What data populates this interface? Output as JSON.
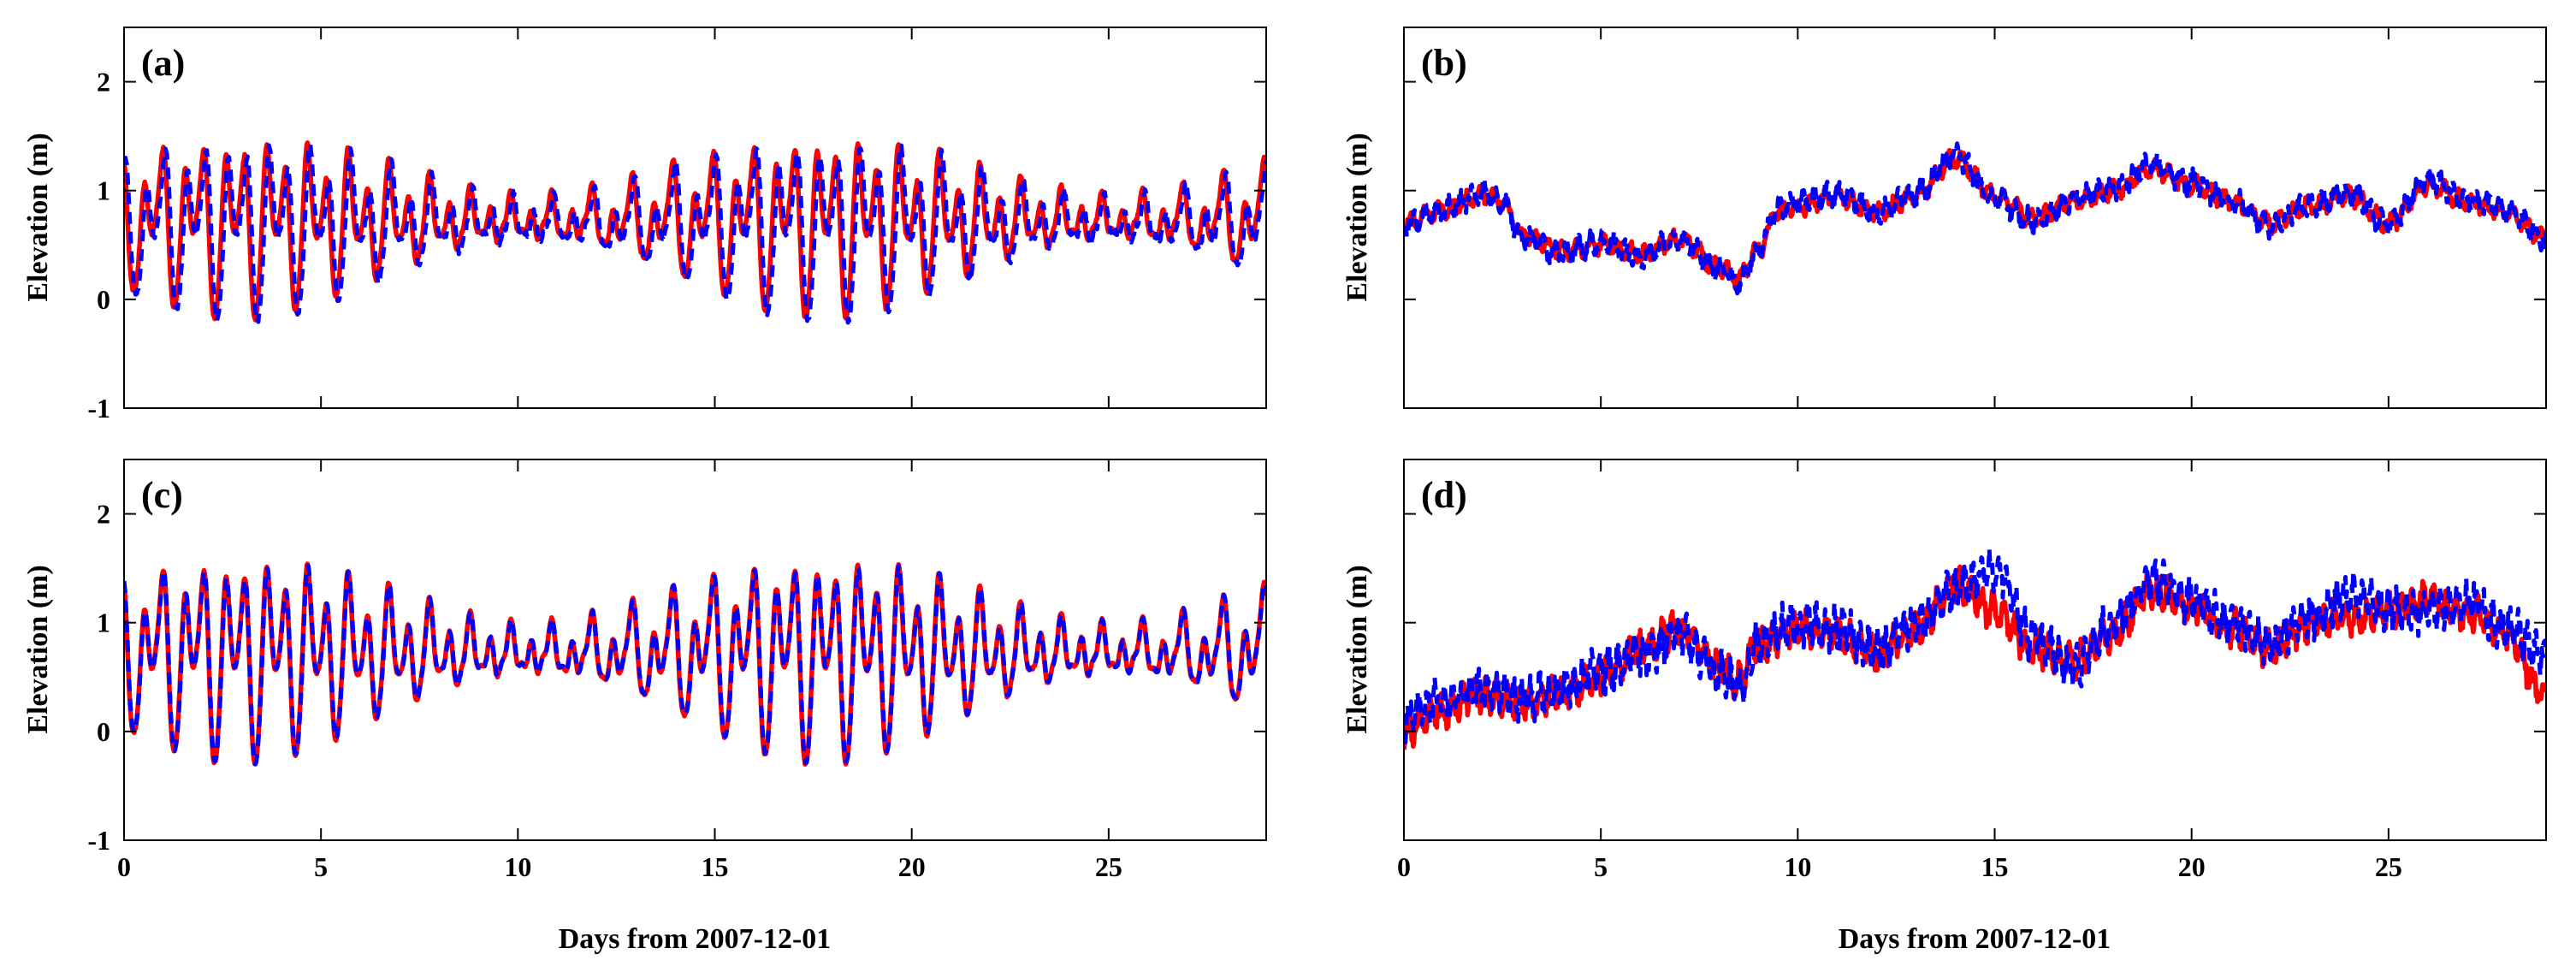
{
  "figure": {
    "description_note": "Four-panel time series of water elevation; red solid and blue dashed series in each panel",
    "colors": {
      "series_red": "#ff0000",
      "series_blue": "#0000ff",
      "axis": "#000000"
    }
  },
  "chart_data": [
    {
      "type": "line",
      "panel": "(a)",
      "xlabel": "",
      "ylabel": "Elevation (m)",
      "xlim": [
        0,
        29
      ],
      "ylim": [
        -1,
        2.5
      ],
      "xticks": [
        0,
        5,
        10,
        15,
        20,
        25
      ],
      "xtick_labels": [
        "",
        "",
        "",
        "",
        "",
        ""
      ],
      "yticks": [
        -1,
        0,
        1,
        2
      ],
      "ytick_labels": [
        "-1",
        "0",
        "1",
        "2"
      ],
      "series": [
        {
          "name": "red solid",
          "color": "#ff0000",
          "style": "solid",
          "model": "tide",
          "mean": 0.72,
          "amp": [
            1.0,
            0.2,
            0.45,
            0.35
          ],
          "phase_shift": 0.0,
          "trend": 0.0,
          "noise": 0.03
        },
        {
          "name": "blue dashed",
          "color": "#0000ff",
          "style": "dashed",
          "model": "tide",
          "mean": 0.7,
          "amp": [
            1.0,
            0.2,
            0.45,
            0.35
          ],
          "phase_shift": 0.06,
          "trend": 0.0,
          "noise": 0.05
        }
      ]
    },
    {
      "type": "line",
      "panel": "(b)",
      "xlabel": "",
      "ylabel": "Elevation (m)",
      "xlim": [
        0,
        29
      ],
      "ylim": [
        -1,
        2.5
      ],
      "xticks": [
        0,
        5,
        10,
        15,
        20,
        25
      ],
      "xtick_labels": [
        "",
        "",
        "",
        "",
        "",
        ""
      ],
      "yticks": [],
      "ytick_labels": [],
      "series": [
        {
          "name": "red solid",
          "color": "#ff0000",
          "style": "solid",
          "model": "anchors",
          "anchors": [
            [
              0,
              0.7
            ],
            [
              1,
              0.82
            ],
            [
              2,
              0.95
            ],
            [
              2.5,
              0.9
            ],
            [
              3,
              0.6
            ],
            [
              4,
              0.45
            ],
            [
              5,
              0.5
            ],
            [
              6,
              0.42
            ],
            [
              7,
              0.55
            ],
            [
              8,
              0.3
            ],
            [
              8.5,
              0.2
            ],
            [
              9,
              0.45
            ],
            [
              9.5,
              0.8
            ],
            [
              10,
              0.85
            ],
            [
              11,
              0.95
            ],
            [
              12,
              0.8
            ],
            [
              13,
              0.95
            ],
            [
              14,
              1.3
            ],
            [
              15,
              0.95
            ],
            [
              16,
              0.75
            ],
            [
              17,
              0.9
            ],
            [
              18,
              1.0
            ],
            [
              19,
              1.2
            ],
            [
              20,
              1.05
            ],
            [
              21,
              0.9
            ],
            [
              22,
              0.7
            ],
            [
              23,
              0.85
            ],
            [
              24,
              0.95
            ],
            [
              25,
              0.7
            ],
            [
              26,
              1.05
            ],
            [
              27,
              0.9
            ],
            [
              28,
              0.8
            ],
            [
              29,
              0.55
            ]
          ],
          "noise": 0.07,
          "jitter_period": 0.35
        },
        {
          "name": "blue dashed",
          "color": "#0000ff",
          "style": "dashed",
          "model": "anchors",
          "anchors": [
            [
              0,
              0.7
            ],
            [
              1,
              0.82
            ],
            [
              2,
              0.98
            ],
            [
              2.5,
              0.88
            ],
            [
              3,
              0.58
            ],
            [
              4,
              0.43
            ],
            [
              5,
              0.52
            ],
            [
              6,
              0.4
            ],
            [
              7,
              0.56
            ],
            [
              8,
              0.28
            ],
            [
              8.5,
              0.15
            ],
            [
              9,
              0.45
            ],
            [
              9.5,
              0.82
            ],
            [
              10,
              0.88
            ],
            [
              11,
              0.97
            ],
            [
              12,
              0.8
            ],
            [
              13,
              0.98
            ],
            [
              14,
              1.33
            ],
            [
              15,
              0.93
            ],
            [
              16,
              0.72
            ],
            [
              17,
              0.92
            ],
            [
              18,
              1.02
            ],
            [
              19,
              1.24
            ],
            [
              20,
              1.07
            ],
            [
              21,
              0.9
            ],
            [
              22,
              0.68
            ],
            [
              23,
              0.87
            ],
            [
              24,
              0.98
            ],
            [
              25,
              0.68
            ],
            [
              26,
              1.1
            ],
            [
              27,
              0.92
            ],
            [
              28,
              0.82
            ],
            [
              29,
              0.55
            ]
          ],
          "noise": 0.09,
          "jitter_period": 0.3
        }
      ]
    },
    {
      "type": "line",
      "panel": "(c)",
      "xlabel": "Days from 2007-12-01",
      "ylabel": "Elevation (m)",
      "xlim": [
        0,
        29
      ],
      "ylim": [
        -1,
        2.5
      ],
      "xticks": [
        0,
        5,
        10,
        15,
        20,
        25
      ],
      "xtick_labels": [
        "0",
        "5",
        "10",
        "15",
        "20",
        "25"
      ],
      "yticks": [
        -1,
        0,
        1,
        2
      ],
      "ytick_labels": [
        "-1",
        "0",
        "1",
        "2"
      ],
      "series": [
        {
          "name": "red solid",
          "color": "#ff0000",
          "style": "solid",
          "model": "tide",
          "mean": 0.72,
          "amp": [
            1.15,
            0.22,
            0.5,
            0.4
          ],
          "phase_shift": 0.0,
          "trend": 0.0,
          "noise": 0.02
        },
        {
          "name": "blue dashed",
          "color": "#0000ff",
          "style": "dashed",
          "model": "tide",
          "mean": 0.72,
          "amp": [
            1.13,
            0.22,
            0.5,
            0.4
          ],
          "phase_shift": 0.01,
          "trend": 0.0,
          "noise": 0.02
        }
      ]
    },
    {
      "type": "line",
      "panel": "(d)",
      "xlabel": "Days from 2007-12-01",
      "ylabel": "Elevation (m)",
      "xlim": [
        0,
        29
      ],
      "ylim": [
        -1,
        2.5
      ],
      "xticks": [
        0,
        5,
        10,
        15,
        20,
        25
      ],
      "xtick_labels": [
        "0",
        "5",
        "10",
        "15",
        "20",
        "25"
      ],
      "yticks": [],
      "ytick_labels": [],
      "series": [
        {
          "name": "red solid",
          "color": "#ff0000",
          "style": "solid",
          "model": "anchors",
          "anchors": [
            [
              0,
              0.0
            ],
            [
              1,
              0.2
            ],
            [
              2,
              0.35
            ],
            [
              3,
              0.25
            ],
            [
              4,
              0.35
            ],
            [
              5,
              0.5
            ],
            [
              6,
              0.75
            ],
            [
              7,
              0.95
            ],
            [
              8,
              0.6
            ],
            [
              8.5,
              0.45
            ],
            [
              9,
              0.8
            ],
            [
              10,
              0.95
            ],
            [
              11,
              0.9
            ],
            [
              12,
              0.7
            ],
            [
              13,
              0.95
            ],
            [
              14,
              1.35
            ],
            [
              15,
              1.1
            ],
            [
              16,
              0.75
            ],
            [
              17,
              0.65
            ],
            [
              18,
              0.9
            ],
            [
              19,
              1.3
            ],
            [
              20,
              1.15
            ],
            [
              21,
              0.95
            ],
            [
              22,
              0.75
            ],
            [
              23,
              1.0
            ],
            [
              24,
              1.05
            ],
            [
              25,
              1.1
            ],
            [
              26,
              1.2
            ],
            [
              27,
              1.1
            ],
            [
              28,
              0.9
            ],
            [
              29,
              0.3
            ]
          ],
          "noise": 0.13,
          "jitter_period": 0.28
        },
        {
          "name": "blue dashed",
          "color": "#0000ff",
          "style": "dashed",
          "model": "anchors",
          "anchors": [
            [
              0,
              0.1
            ],
            [
              1,
              0.3
            ],
            [
              2,
              0.4
            ],
            [
              3,
              0.3
            ],
            [
              4,
              0.4
            ],
            [
              5,
              0.55
            ],
            [
              6,
              0.7
            ],
            [
              7,
              0.9
            ],
            [
              8,
              0.55
            ],
            [
              8.5,
              0.4
            ],
            [
              9,
              0.85
            ],
            [
              10,
              1.0
            ],
            [
              11,
              0.95
            ],
            [
              12,
              0.72
            ],
            [
              13,
              1.0
            ],
            [
              14,
              1.3
            ],
            [
              15,
              1.5
            ],
            [
              16,
              0.85
            ],
            [
              17,
              0.6
            ],
            [
              18,
              1.0
            ],
            [
              19,
              1.4
            ],
            [
              20,
              1.2
            ],
            [
              21,
              1.0
            ],
            [
              22,
              0.8
            ],
            [
              23,
              1.05
            ],
            [
              24,
              1.25
            ],
            [
              25,
              1.15
            ],
            [
              26,
              1.1
            ],
            [
              27,
              1.2
            ],
            [
              28,
              0.95
            ],
            [
              29,
              0.7
            ]
          ],
          "noise": 0.16,
          "jitter_period": 0.22
        }
      ]
    }
  ]
}
